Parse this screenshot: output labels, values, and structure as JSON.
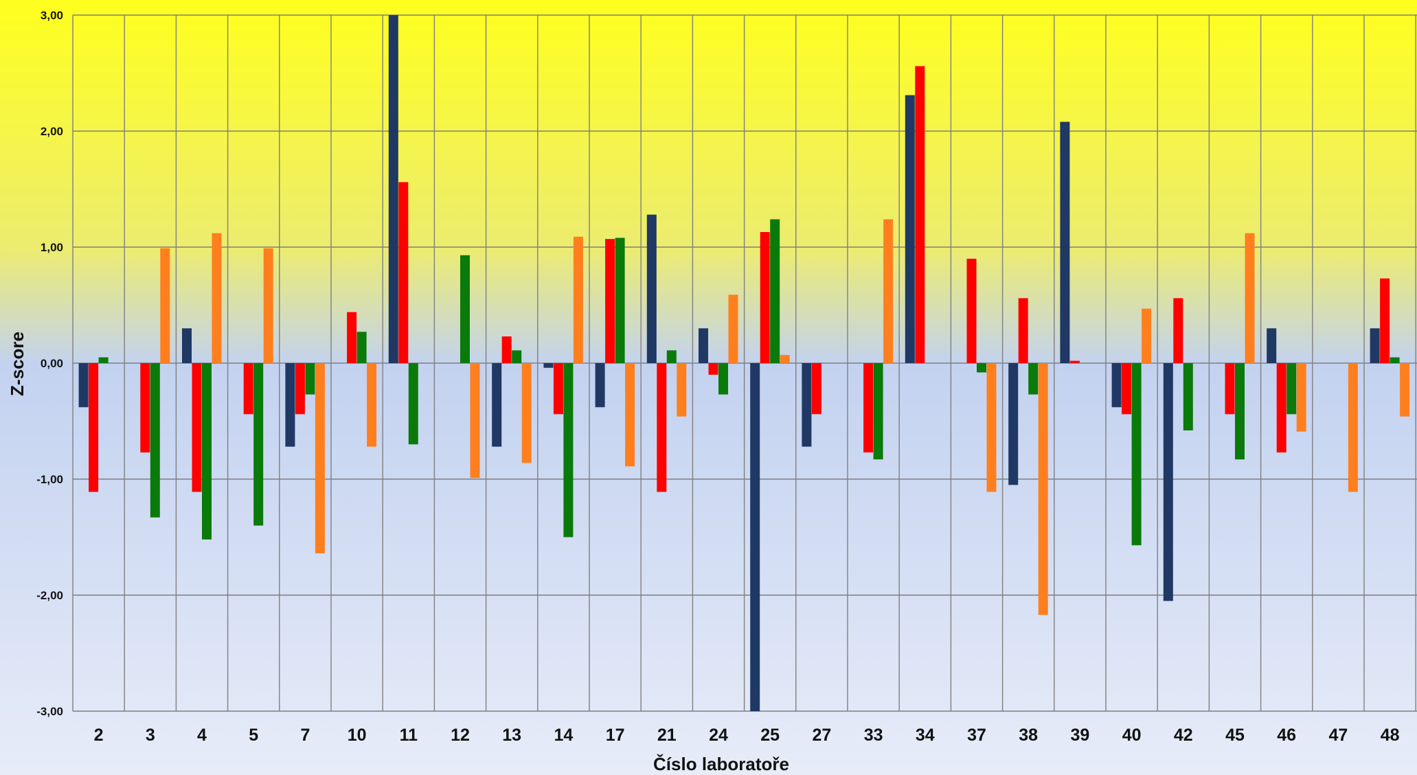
{
  "chart_data": {
    "type": "bar",
    "title": "",
    "xlabel": "Číslo laboratoře",
    "ylabel": "Z-score",
    "ylim": [
      -3,
      3
    ],
    "yticks": [
      3,
      2,
      1,
      0,
      -1,
      -2,
      -3
    ],
    "ytick_labels": [
      "3,00",
      "2,00",
      "1,00",
      "0,00",
      "-1,00",
      "-2,00",
      "-3,00"
    ],
    "grid": true,
    "legend": "none",
    "background": "vertical gradient: yellow top to light blue bottom",
    "colors": [
      "#1f3864",
      "#ff0000",
      "#0a7a0a",
      "#ff7f1e"
    ],
    "categories": [
      "2",
      "3",
      "4",
      "5",
      "7",
      "10",
      "11",
      "12",
      "13",
      "14",
      "17",
      "21",
      "24",
      "25",
      "27",
      "33",
      "34",
      "37",
      "38",
      "39",
      "40",
      "42",
      "45",
      "46",
      "47",
      "48"
    ],
    "series": [
      {
        "values": [
          -0.38,
          null,
          0.3,
          null,
          -0.72,
          null,
          3.0,
          null,
          -0.72,
          -0.04,
          -0.38,
          1.28,
          0.3,
          -3.0,
          -0.72,
          null,
          2.31,
          null,
          -1.05,
          2.08,
          -0.38,
          -2.05,
          null,
          0.3,
          null,
          0.3
        ]
      },
      {
        "values": [
          -1.11,
          -0.77,
          -1.11,
          -0.44,
          -0.44,
          0.44,
          1.56,
          null,
          0.23,
          -0.44,
          1.07,
          -1.11,
          -0.1,
          1.13,
          -0.44,
          -0.77,
          2.56,
          0.9,
          0.56,
          0.02,
          -0.44,
          0.56,
          -0.44,
          -0.77,
          null,
          0.73
        ]
      },
      {
        "values": [
          0.05,
          -1.33,
          -1.52,
          -1.4,
          -0.27,
          0.27,
          -0.7,
          0.93,
          0.11,
          -1.5,
          1.08,
          0.11,
          -0.27,
          1.24,
          null,
          -0.83,
          null,
          -0.08,
          -0.27,
          null,
          -1.57,
          -0.58,
          -0.83,
          -0.44,
          null,
          0.05
        ]
      },
      {
        "values": [
          null,
          0.99,
          1.12,
          0.99,
          -1.64,
          -0.72,
          null,
          -0.99,
          -0.86,
          1.09,
          -0.89,
          -0.46,
          0.59,
          0.07,
          null,
          1.24,
          null,
          -1.11,
          -2.17,
          null,
          0.47,
          null,
          1.12,
          -0.59,
          -1.11,
          -0.46
        ]
      }
    ]
  }
}
